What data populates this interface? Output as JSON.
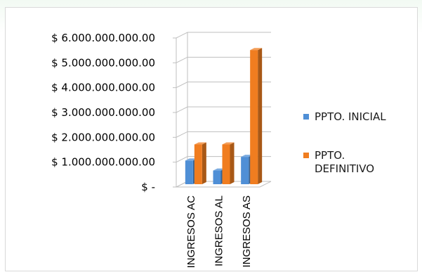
{
  "chart_data": {
    "type": "bar",
    "title": "",
    "xlabel": "",
    "ylabel": "",
    "categories": [
      "INGRESOS AC",
      "INGRESOS AL",
      "INGRESOS AS"
    ],
    "series": [
      {
        "name": "PPTO. INICIAL",
        "color": "#4f8fd6",
        "values": [
          950000000,
          550000000,
          1100000000
        ]
      },
      {
        "name": "PPTO. DEFINITIVO",
        "color": "#f07d20",
        "values": [
          1600000000,
          1600000000,
          5400000000
        ]
      }
    ],
    "ylim": [
      0,
      6000000000
    ],
    "yticks": [
      0,
      1000000000,
      2000000000,
      3000000000,
      4000000000,
      5000000000,
      6000000000
    ],
    "ytick_labels": [
      "$ -",
      "$ 1.000.000.000.00",
      "$ 2.000.000.000.00",
      "$ 3.000.000.000.00",
      "$ 4.000.000.000.00",
      "$ 5.000.000.000.00",
      "$ 6.000.000.000.00"
    ],
    "legend_labels": [
      [
        "PPTO. INICIAL"
      ],
      [
        "PPTO.",
        "DEFINITIVO"
      ]
    ],
    "legend_position": "right",
    "grid": true,
    "style": "3d-clustered-column"
  }
}
